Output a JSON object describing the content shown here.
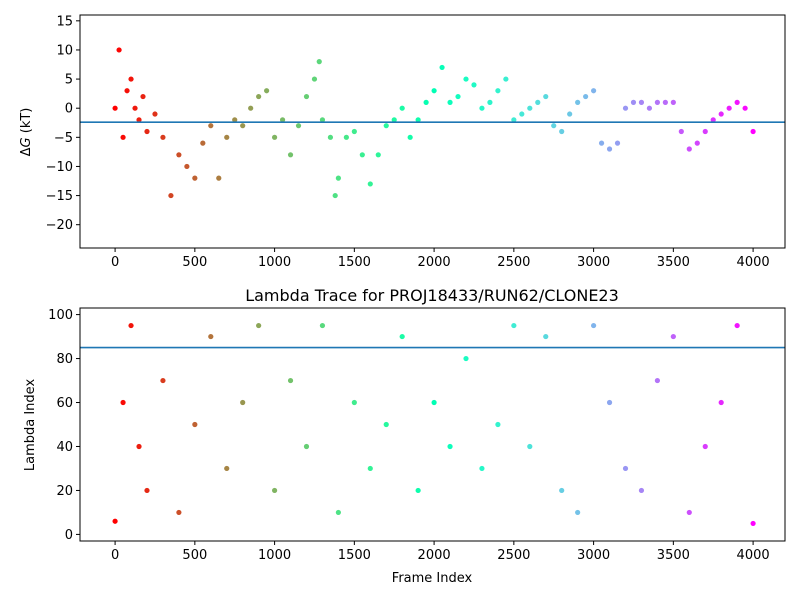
{
  "chart_data": [
    {
      "type": "scatter",
      "title": "",
      "xlabel": "",
      "ylabel": "ΔG (kT)",
      "ylabel_parts": {
        "delta": "Δ",
        "var": "G",
        "unit": " (kT)"
      },
      "xlim": [
        -220,
        4200
      ],
      "ylim": [
        -24,
        16
      ],
      "xticks": [
        0,
        500,
        1000,
        1500,
        2000,
        2500,
        3000,
        3500,
        4000
      ],
      "yticks": [
        -20,
        -15,
        -10,
        -5,
        0,
        5,
        10,
        15
      ],
      "hline": -2.4,
      "hline_color": "#1f77b4",
      "colormap": "rainbow (red at frame 0 to violet at frame 4000)",
      "series": [
        {
          "x": [
            0,
            25,
            50,
            75,
            100,
            125,
            150,
            175,
            200,
            250,
            300,
            350,
            400,
            450,
            500,
            550,
            600,
            650,
            700,
            750,
            800,
            850,
            900,
            950,
            1000,
            1050,
            1100,
            1150,
            1200,
            1250,
            1280,
            1300,
            1350,
            1380,
            1400,
            1450,
            1500,
            1550,
            1600,
            1650,
            1700,
            1750,
            1800,
            1850,
            1900,
            1950,
            2000,
            2050,
            2100,
            2150,
            2200,
            2250,
            2300,
            2350,
            2400,
            2450,
            2500,
            2550,
            2600,
            2650,
            2700,
            2750,
            2800,
            2850,
            2900,
            2950,
            3000,
            3050,
            3100,
            3150,
            3200,
            3250,
            3300,
            3350,
            3400,
            3450,
            3500,
            3550,
            3600,
            3650,
            3700,
            3750,
            3800,
            3850,
            3900,
            3950,
            4000
          ],
          "y": [
            0,
            10,
            -5,
            3,
            5,
            0,
            -2,
            2,
            -4,
            -1,
            -5,
            -15,
            -8,
            -10,
            -12,
            -6,
            -3,
            -12,
            -5,
            -2,
            -3,
            0,
            2,
            3,
            -5,
            -2,
            -8,
            -3,
            2,
            5,
            8,
            -2,
            -5,
            -15,
            -12,
            -5,
            -4,
            -8,
            -13,
            -8,
            -3,
            -2,
            0,
            -5,
            -2,
            1,
            3,
            7,
            1,
            2,
            5,
            4,
            0,
            1,
            3,
            5,
            -2,
            -1,
            0,
            1,
            2,
            -3,
            -4,
            -1,
            1,
            2,
            3,
            -6,
            -7,
            -6,
            0,
            1,
            1,
            0,
            1,
            1,
            1,
            -4,
            -7,
            -6,
            -4,
            -2,
            -1,
            0,
            1,
            0,
            -4
          ]
        }
      ]
    },
    {
      "type": "scatter",
      "title": "Lambda Trace for PROJ18433/RUN62/CLONE23",
      "xlabel": "Frame Index",
      "ylabel": "Lambda Index",
      "xlim": [
        -220,
        4200
      ],
      "ylim": [
        -3,
        103
      ],
      "xticks": [
        0,
        500,
        1000,
        1500,
        2000,
        2500,
        3000,
        3500,
        4000
      ],
      "yticks": [
        0,
        20,
        40,
        60,
        80,
        100
      ],
      "hline": 85,
      "hline_color": "#1f77b4",
      "colormap": "rainbow (red at frame 0 to violet at frame 4000)",
      "series": [
        {
          "x": [
            0,
            50,
            100,
            150,
            200,
            300,
            400,
            500,
            600,
            700,
            800,
            900,
            1000,
            1100,
            1200,
            1300,
            1400,
            1500,
            1600,
            1700,
            1800,
            1900,
            2000,
            2100,
            2200,
            2300,
            2400,
            2500,
            2600,
            2700,
            2800,
            2900,
            3000,
            3100,
            3200,
            3300,
            3400,
            3500,
            3600,
            3700,
            3800,
            3900,
            4000
          ],
          "y": [
            6,
            60,
            95,
            40,
            20,
            70,
            10,
            50,
            90,
            30,
            60,
            95,
            20,
            70,
            40,
            95,
            10,
            60,
            30,
            50,
            90,
            20,
            60,
            40,
            80,
            30,
            50,
            95,
            40,
            90,
            20,
            10,
            95,
            60,
            30,
            20,
            70,
            90,
            10,
            40,
            60,
            95,
            5
          ]
        }
      ]
    }
  ]
}
